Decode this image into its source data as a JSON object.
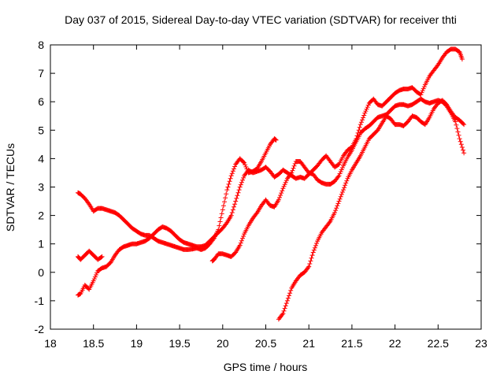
{
  "chart_data": {
    "type": "scatter",
    "title": "Day 037 of 2015, Sidereal Day-to-day VTEC variation (SDTVAR) for receiver thti",
    "xlabel": "GPS time / hours",
    "ylabel": "SDTVAR / TECUs",
    "xlim": [
      18,
      23
    ],
    "ylim": [
      -2,
      8
    ],
    "xticks": [
      18,
      18.5,
      19,
      19.5,
      20,
      20.5,
      21,
      21.5,
      22,
      22.5,
      23
    ],
    "yticks": [
      -2,
      -1,
      0,
      1,
      2,
      3,
      4,
      5,
      6,
      7,
      8
    ],
    "grid": false,
    "legend": "none",
    "marker": "plus",
    "color": "#ff0000",
    "series": [
      {
        "x": [
          18.32,
          18.35,
          18.4,
          18.45,
          18.5,
          18.55,
          18.6,
          18.65,
          18.7,
          18.75,
          18.8,
          18.85,
          18.9,
          18.95,
          19.0,
          19.05,
          19.1,
          19.15,
          19.2,
          19.25,
          19.3,
          19.35,
          19.4,
          19.45,
          19.5,
          19.55,
          19.6,
          19.65,
          19.7,
          19.75,
          19.8,
          19.85,
          19.9,
          19.95,
          20.0,
          20.05,
          20.1,
          20.15,
          20.2,
          20.25,
          20.3,
          20.35,
          20.4,
          20.45,
          20.5,
          20.55,
          20.6,
          20.62
        ],
        "y": [
          2.8,
          2.75,
          2.6,
          2.4,
          2.15,
          2.25,
          2.25,
          2.2,
          2.15,
          2.1,
          2.0,
          1.85,
          1.7,
          1.55,
          1.45,
          1.35,
          1.3,
          1.3,
          1.2,
          1.1,
          1.05,
          1.0,
          0.95,
          0.9,
          0.85,
          0.8,
          0.8,
          0.82,
          0.85,
          0.8,
          0.85,
          1.0,
          1.2,
          1.5,
          2.2,
          2.9,
          3.4,
          3.8,
          4.0,
          3.85,
          3.5,
          3.55,
          3.65,
          3.9,
          4.2,
          4.5,
          4.7,
          4.65
        ]
      },
      {
        "x": [
          18.32,
          18.35,
          18.4,
          18.45,
          18.5,
          18.55,
          18.6,
          18.65,
          18.7,
          18.75,
          18.8,
          18.85,
          18.9,
          18.95,
          19.0,
          19.05,
          19.1,
          19.15,
          19.2,
          19.25,
          19.3,
          19.35,
          19.4,
          19.45,
          19.5,
          19.55,
          19.6,
          19.65,
          19.7,
          19.75,
          19.8,
          19.85,
          19.9,
          19.95,
          20.0,
          20.05,
          20.1,
          20.15,
          20.2,
          20.25,
          20.3,
          20.35,
          20.4,
          20.45,
          20.5,
          20.55,
          20.6,
          20.65,
          20.7,
          20.75,
          20.8,
          20.85,
          20.9,
          20.95,
          21.0,
          21.05,
          21.1,
          21.15,
          21.2,
          21.25,
          21.3,
          21.35,
          21.4,
          21.45,
          21.5,
          21.55,
          21.6,
          21.65,
          21.7,
          21.75,
          21.8,
          21.85,
          21.9,
          21.95,
          22.0,
          22.05,
          22.1,
          22.15,
          22.2,
          22.25,
          22.3,
          22.35,
          22.4,
          22.45,
          22.5,
          22.55,
          22.6,
          22.65,
          22.7,
          22.75,
          22.78
        ],
        "y": [
          -0.8,
          -0.75,
          -0.45,
          -0.6,
          -0.3,
          0.05,
          0.15,
          0.2,
          0.35,
          0.6,
          0.8,
          0.9,
          0.95,
          1.0,
          1.0,
          1.05,
          1.1,
          1.2,
          1.35,
          1.5,
          1.6,
          1.55,
          1.45,
          1.3,
          1.15,
          1.05,
          1.0,
          0.95,
          0.9,
          0.9,
          0.95,
          1.1,
          1.25,
          1.4,
          1.55,
          1.75,
          2.0,
          2.5,
          3.0,
          3.4,
          3.6,
          3.5,
          3.55,
          3.6,
          3.7,
          3.55,
          3.35,
          3.45,
          3.6,
          3.5,
          3.4,
          3.3,
          3.35,
          3.3,
          3.45,
          3.6,
          3.75,
          3.95,
          4.1,
          3.9,
          3.7,
          3.8,
          4.1,
          4.3,
          4.4,
          4.7,
          5.2,
          5.6,
          5.95,
          6.1,
          5.9,
          5.85,
          6.0,
          6.15,
          6.3,
          6.4,
          6.45,
          6.45,
          6.5,
          6.35,
          6.25,
          6.6,
          6.9,
          7.1,
          7.3,
          7.55,
          7.75,
          7.85,
          7.85,
          7.75,
          7.5
        ]
      },
      {
        "x": [
          18.32,
          18.35,
          18.4,
          18.45,
          18.5,
          18.55,
          18.6
        ],
        "y": [
          0.55,
          0.45,
          0.6,
          0.75,
          0.6,
          0.45,
          0.55
        ]
      },
      {
        "x": [
          19.88,
          19.9,
          19.95,
          20.0,
          20.05,
          20.1,
          20.15,
          20.2,
          20.25,
          20.3,
          20.35,
          20.4,
          20.45,
          20.5,
          20.55,
          20.6,
          20.65,
          20.7,
          20.75,
          20.8,
          20.85,
          20.9,
          20.95,
          21.0,
          21.05,
          21.1,
          21.15,
          21.2,
          21.25,
          21.3,
          21.35,
          21.4,
          21.45,
          21.5,
          21.55,
          21.6,
          21.65,
          21.7,
          21.75,
          21.8,
          21.85,
          21.9,
          21.95,
          22.0,
          22.05,
          22.1,
          22.15,
          22.2,
          22.25,
          22.3,
          22.35,
          22.4,
          22.45,
          22.5,
          22.55,
          22.6,
          22.65,
          22.7,
          22.75,
          22.8
        ],
        "y": [
          0.4,
          0.45,
          0.65,
          0.65,
          0.6,
          0.55,
          0.7,
          0.95,
          1.35,
          1.65,
          1.9,
          2.1,
          2.35,
          2.55,
          2.35,
          2.3,
          2.55,
          2.95,
          3.3,
          3.5,
          3.9,
          3.9,
          3.7,
          3.5,
          3.45,
          3.25,
          3.15,
          3.1,
          3.1,
          3.2,
          3.4,
          3.75,
          4.05,
          4.3,
          4.6,
          4.9,
          5.05,
          5.15,
          5.3,
          5.45,
          5.5,
          5.55,
          5.7,
          5.85,
          5.9,
          5.9,
          5.85,
          5.9,
          6.0,
          6.1,
          6.0,
          5.95,
          6.0,
          6.05,
          6.0,
          5.85,
          5.6,
          5.3,
          4.7,
          4.2
        ]
      },
      {
        "x": [
          20.65,
          20.7,
          20.75,
          20.8,
          20.85,
          20.9,
          20.95,
          21.0,
          21.05,
          21.1,
          21.15,
          21.2,
          21.25,
          21.3,
          21.35,
          21.4,
          21.45,
          21.5,
          21.55,
          21.6,
          21.65,
          21.7,
          21.75,
          21.8,
          21.85,
          21.9,
          21.95,
          22.0,
          22.05,
          22.1,
          22.15,
          22.2,
          22.25,
          22.3,
          22.35,
          22.4,
          22.45,
          22.5,
          22.55,
          22.6,
          22.65,
          22.7,
          22.75,
          22.8
        ],
        "y": [
          -1.65,
          -1.45,
          -1.0,
          -0.55,
          -0.3,
          -0.1,
          0.0,
          0.2,
          0.7,
          1.1,
          1.4,
          1.6,
          1.8,
          2.1,
          2.5,
          2.9,
          3.3,
          3.6,
          3.85,
          4.1,
          4.4,
          4.7,
          4.85,
          5.0,
          5.25,
          5.5,
          5.4,
          5.2,
          5.2,
          5.15,
          5.3,
          5.5,
          5.45,
          5.3,
          5.2,
          5.45,
          5.75,
          5.95,
          6.05,
          5.9,
          5.65,
          5.45,
          5.35,
          5.2
        ]
      }
    ]
  }
}
